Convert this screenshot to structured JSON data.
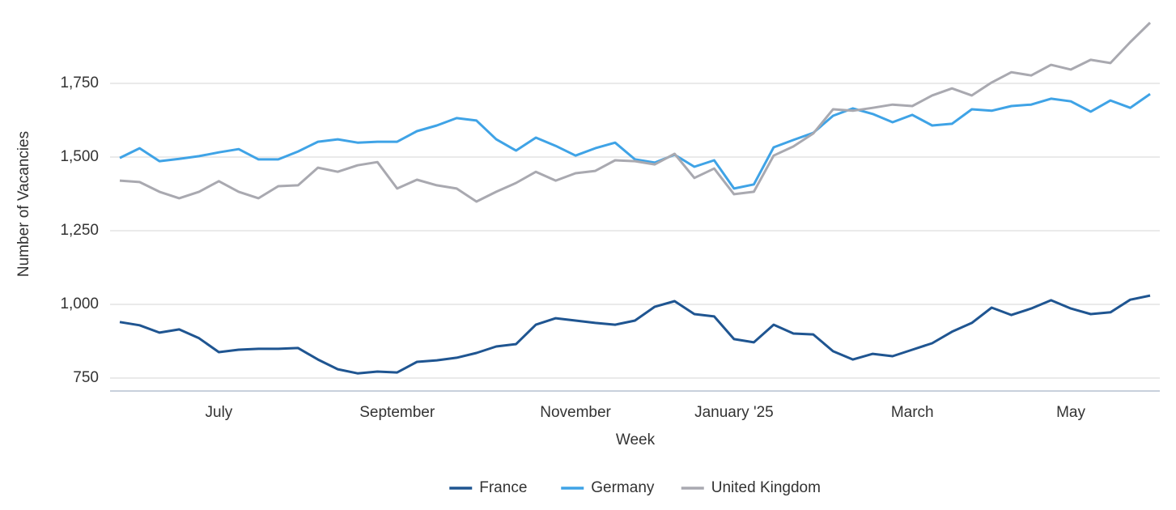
{
  "chart_data": {
    "type": "line",
    "x_label": "Week",
    "y_label": "Number of Vacancies",
    "categories": [
      null,
      null,
      null,
      null,
      null,
      "July",
      null,
      null,
      null,
      null,
      null,
      null,
      null,
      null,
      "September",
      null,
      null,
      null,
      null,
      null,
      null,
      null,
      null,
      "November",
      null,
      null,
      null,
      null,
      null,
      null,
      null,
      "January '25",
      null,
      null,
      null,
      null,
      null,
      null,
      null,
      null,
      "March",
      null,
      null,
      null,
      null,
      null,
      null,
      null,
      "May",
      null,
      null,
      null,
      null
    ],
    "series": [
      {
        "name": "France",
        "color": "#1f5591",
        "values": [
          940,
          929,
          904,
          915,
          885,
          838,
          846,
          849,
          849,
          852,
          813,
          780,
          766,
          772,
          769,
          805,
          810,
          819,
          835,
          857,
          865,
          931,
          953,
          945,
          937,
          931,
          945,
          992,
          1011,
          967,
          959,
          882,
          871,
          931,
          901,
          898,
          841,
          813,
          832,
          824,
          846,
          868,
          907,
          937,
          989,
          964,
          986,
          1014,
          986,
          967,
          973,
          1016,
          1030
        ]
      },
      {
        "name": "Germany",
        "color": "#3fa3e6",
        "values": [
          1497,
          1530,
          1486,
          1494,
          1503,
          1516,
          1527,
          1492,
          1492,
          1519,
          1552,
          1560,
          1549,
          1552,
          1552,
          1588,
          1607,
          1632,
          1624,
          1560,
          1522,
          1566,
          1538,
          1505,
          1530,
          1549,
          1492,
          1481,
          1508,
          1467,
          1489,
          1393,
          1407,
          1533,
          1558,
          1582,
          1640,
          1665,
          1646,
          1618,
          1643,
          1607,
          1613,
          1662,
          1657,
          1673,
          1678,
          1698,
          1689,
          1654,
          1692,
          1667,
          1714
        ]
      },
      {
        "name": "United Kingdom",
        "color": "#a9a9b0",
        "values": [
          1420,
          1415,
          1382,
          1360,
          1382,
          1418,
          1382,
          1360,
          1401,
          1404,
          1464,
          1450,
          1472,
          1483,
          1393,
          1423,
          1404,
          1393,
          1349,
          1382,
          1412,
          1450,
          1420,
          1445,
          1453,
          1489,
          1486,
          1475,
          1511,
          1429,
          1461,
          1374,
          1382,
          1505,
          1536,
          1580,
          1662,
          1657,
          1667,
          1678,
          1673,
          1709,
          1733,
          1709,
          1753,
          1788,
          1777,
          1813,
          1797,
          1830,
          1819,
          1890,
          1956
        ]
      }
    ],
    "ylim": [
      706,
      1978
    ],
    "yticks": [
      {
        "value": 750,
        "label": "750"
      },
      {
        "value": 1000,
        "label": "1,000"
      },
      {
        "value": 1250,
        "label": "1,250"
      },
      {
        "value": 1500,
        "label": "1,500"
      },
      {
        "value": 1750,
        "label": "1,750"
      }
    ],
    "grid": true,
    "legend": "bottom"
  }
}
